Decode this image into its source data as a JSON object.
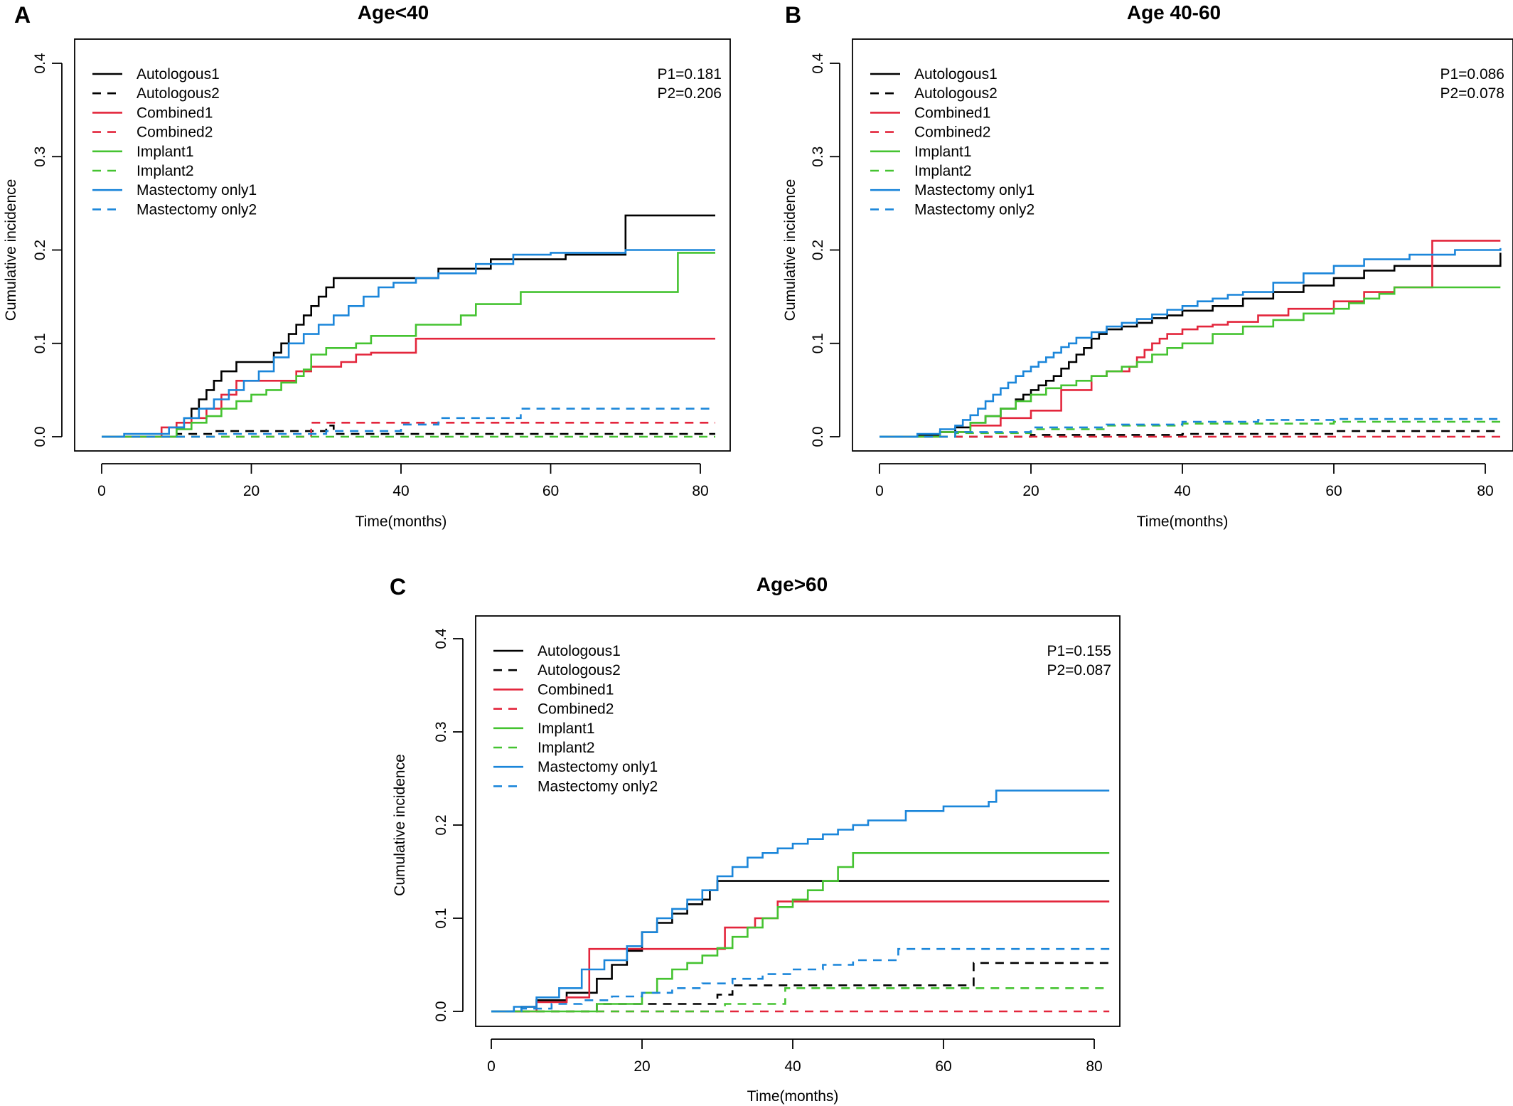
{
  "chart_data": [
    {
      "type": "line",
      "step": true,
      "panel_label": "A",
      "title": "Age<40",
      "xlabel": "Time(months)",
      "ylabel": "Cumulative incidence",
      "xlim": [
        0,
        83
      ],
      "ylim": [
        0,
        0.4
      ],
      "xticks": [
        "0",
        "20",
        "40",
        "60",
        "80"
      ],
      "yticks": [
        "0.0",
        "0.1",
        "0.2",
        "0.3",
        "0.4"
      ],
      "grid": false,
      "legend_position": "top-left",
      "pvalues": [
        "P1=0.181",
        "P2=0.206"
      ],
      "series": [
        {
          "name": "Autologous1",
          "color": "#000000",
          "dash": false,
          "x": [
            0,
            10,
            11,
            12,
            13,
            14,
            15,
            16,
            18,
            20,
            23,
            24,
            25,
            26,
            27,
            28,
            29,
            30,
            31,
            32,
            33,
            34,
            38,
            45,
            52,
            62,
            70,
            82
          ],
          "y": [
            0,
            0.01,
            0.02,
            0.03,
            0.04,
            0.05,
            0.06,
            0.07,
            0.08,
            0.08,
            0.09,
            0.1,
            0.11,
            0.12,
            0.13,
            0.14,
            0.15,
            0.16,
            0.17,
            0.17,
            0.17,
            0.17,
            0.17,
            0.18,
            0.19,
            0.195,
            0.237,
            0.237
          ]
        },
        {
          "name": "Autologous2",
          "color": "#000000",
          "dash": true,
          "x": [
            0,
            10,
            15,
            30,
            31,
            82
          ],
          "y": [
            0,
            0.003,
            0.006,
            0.012,
            0.003,
            0.003
          ]
        },
        {
          "name": "Combined1",
          "color": "#E3263C",
          "dash": false,
          "x": [
            0,
            8,
            10,
            12,
            14,
            16,
            18,
            20,
            22,
            26,
            28,
            32,
            34,
            36,
            42,
            82
          ],
          "y": [
            0,
            0.01,
            0.015,
            0.02,
            0.03,
            0.045,
            0.06,
            0.06,
            0.06,
            0.07,
            0.075,
            0.08,
            0.088,
            0.09,
            0.105,
            0.105
          ]
        },
        {
          "name": "Combined2",
          "color": "#E3263C",
          "dash": true,
          "x": [
            0,
            28,
            82
          ],
          "y": [
            0,
            0.015,
            0.015
          ]
        },
        {
          "name": "Implant1",
          "color": "#45C331",
          "dash": false,
          "x": [
            0,
            10,
            12,
            14,
            16,
            18,
            20,
            22,
            24,
            26,
            27,
            28,
            30,
            34,
            36,
            42,
            48,
            50,
            56,
            64,
            70,
            77,
            82
          ],
          "y": [
            0,
            0.008,
            0.015,
            0.022,
            0.03,
            0.038,
            0.045,
            0.05,
            0.058,
            0.065,
            0.072,
            0.088,
            0.095,
            0.1,
            0.108,
            0.12,
            0.13,
            0.142,
            0.155,
            0.155,
            0.155,
            0.197,
            0.197
          ]
        },
        {
          "name": "Implant2",
          "color": "#45C331",
          "dash": true,
          "x": [
            0,
            82
          ],
          "y": [
            0,
            0
          ]
        },
        {
          "name": "Mastectomy only1",
          "color": "#1B86DA",
          "dash": false,
          "x": [
            0,
            3,
            9,
            11,
            13,
            15,
            17,
            19,
            21,
            23,
            25,
            27,
            29,
            31,
            33,
            35,
            37,
            39,
            42,
            45,
            50,
            55,
            60,
            70,
            82
          ],
          "y": [
            0,
            0.003,
            0.01,
            0.02,
            0.03,
            0.04,
            0.05,
            0.06,
            0.07,
            0.085,
            0.1,
            0.11,
            0.12,
            0.13,
            0.14,
            0.15,
            0.16,
            0.165,
            0.17,
            0.175,
            0.185,
            0.195,
            0.197,
            0.2,
            0.2
          ]
        },
        {
          "name": "Mastectomy only2",
          "color": "#1B86DA",
          "dash": true,
          "x": [
            0,
            15,
            30,
            40,
            45,
            56,
            82
          ],
          "y": [
            0,
            0.003,
            0.006,
            0.013,
            0.02,
            0.03,
            0.03
          ]
        }
      ]
    },
    {
      "type": "line",
      "step": true,
      "panel_label": "B",
      "title": "Age 40-60",
      "xlabel": "Time(months)",
      "ylabel": "Cumulative incidence",
      "xlim": [
        0,
        83
      ],
      "ylim": [
        0,
        0.4
      ],
      "xticks": [
        "0",
        "20",
        "40",
        "60",
        "80"
      ],
      "yticks": [
        "0.0",
        "0.1",
        "0.2",
        "0.3",
        "0.4"
      ],
      "grid": false,
      "legend_position": "top-left",
      "pvalues": [
        "P1=0.086",
        "P2=0.078"
      ],
      "series": [
        {
          "name": "Autologous1",
          "color": "#000000",
          "dash": false,
          "x": [
            0,
            5,
            8,
            10,
            12,
            14,
            16,
            18,
            19,
            20,
            21,
            22,
            23,
            24,
            25,
            26,
            27,
            28,
            29,
            30,
            32,
            34,
            36,
            38,
            40,
            44,
            48,
            52,
            56,
            60,
            64,
            68,
            82
          ],
          "y": [
            0,
            0.002,
            0.005,
            0.01,
            0.015,
            0.022,
            0.03,
            0.04,
            0.045,
            0.05,
            0.055,
            0.06,
            0.065,
            0.073,
            0.08,
            0.088,
            0.095,
            0.105,
            0.11,
            0.115,
            0.118,
            0.122,
            0.127,
            0.13,
            0.135,
            0.14,
            0.148,
            0.155,
            0.162,
            0.17,
            0.178,
            0.183,
            0.197
          ]
        },
        {
          "name": "Autologous2",
          "color": "#000000",
          "dash": true,
          "x": [
            0,
            20,
            40,
            60,
            82
          ],
          "y": [
            0,
            0.002,
            0.003,
            0.006,
            0.006
          ]
        },
        {
          "name": "Combined1",
          "color": "#E3263C",
          "dash": false,
          "x": [
            0,
            8,
            12,
            16,
            20,
            24,
            28,
            30,
            33,
            34,
            35,
            36,
            37,
            38,
            40,
            42,
            44,
            46,
            50,
            54,
            60,
            64,
            68,
            73,
            82
          ],
          "y": [
            0,
            0.005,
            0.012,
            0.02,
            0.028,
            0.05,
            0.065,
            0.07,
            0.075,
            0.085,
            0.093,
            0.1,
            0.105,
            0.11,
            0.115,
            0.118,
            0.12,
            0.123,
            0.13,
            0.137,
            0.145,
            0.155,
            0.16,
            0.21,
            0.21
          ]
        },
        {
          "name": "Combined2",
          "color": "#E3263C",
          "dash": true,
          "x": [
            0,
            82
          ],
          "y": [
            0,
            0
          ]
        },
        {
          "name": "Implant1",
          "color": "#45C331",
          "dash": false,
          "x": [
            0,
            8,
            12,
            14,
            16,
            18,
            20,
            22,
            24,
            26,
            28,
            30,
            32,
            34,
            36,
            38,
            40,
            44,
            48,
            52,
            56,
            60,
            62,
            64,
            66,
            68,
            82
          ],
          "y": [
            0,
            0.005,
            0.015,
            0.022,
            0.03,
            0.038,
            0.045,
            0.052,
            0.055,
            0.06,
            0.065,
            0.07,
            0.075,
            0.08,
            0.088,
            0.095,
            0.1,
            0.11,
            0.118,
            0.125,
            0.132,
            0.137,
            0.143,
            0.148,
            0.153,
            0.16,
            0.16
          ]
        },
        {
          "name": "Implant2",
          "color": "#45C331",
          "dash": true,
          "x": [
            0,
            10,
            20,
            30,
            40,
            60,
            82
          ],
          "y": [
            0,
            0.004,
            0.008,
            0.012,
            0.014,
            0.016,
            0.016
          ]
        },
        {
          "name": "Mastectomy only1",
          "color": "#1B86DA",
          "dash": false,
          "x": [
            0,
            5,
            8,
            10,
            11,
            12,
            13,
            14,
            15,
            16,
            17,
            18,
            19,
            20,
            21,
            22,
            23,
            24,
            25,
            26,
            28,
            30,
            32,
            34,
            36,
            38,
            40,
            42,
            44,
            46,
            48,
            52,
            56,
            60,
            64,
            70,
            76,
            82
          ],
          "y": [
            0,
            0.003,
            0.008,
            0.012,
            0.018,
            0.023,
            0.03,
            0.038,
            0.045,
            0.052,
            0.058,
            0.065,
            0.07,
            0.075,
            0.08,
            0.085,
            0.09,
            0.096,
            0.1,
            0.106,
            0.112,
            0.118,
            0.122,
            0.126,
            0.131,
            0.136,
            0.14,
            0.145,
            0.148,
            0.152,
            0.155,
            0.165,
            0.175,
            0.183,
            0.19,
            0.195,
            0.2,
            0.202
          ]
        },
        {
          "name": "Mastectomy only2",
          "color": "#1B86DA",
          "dash": true,
          "x": [
            0,
            10,
            20,
            30,
            40,
            50,
            60,
            82
          ],
          "y": [
            0,
            0.005,
            0.01,
            0.013,
            0.016,
            0.018,
            0.019,
            0.02
          ]
        }
      ]
    },
    {
      "type": "line",
      "step": true,
      "panel_label": "C",
      "title": "Age>60",
      "xlabel": "Time(months)",
      "ylabel": "Cumulative incidence",
      "xlim": [
        0,
        83
      ],
      "ylim": [
        0,
        0.4
      ],
      "xticks": [
        "0",
        "20",
        "40",
        "60",
        "80"
      ],
      "yticks": [
        "0.0",
        "0.1",
        "0.2",
        "0.3",
        "0.4"
      ],
      "grid": false,
      "legend_position": "top-left",
      "pvalues": [
        "P1=0.155",
        "P2=0.087"
      ],
      "series": [
        {
          "name": "Autologous1",
          "color": "#000000",
          "dash": false,
          "x": [
            0,
            4,
            6,
            10,
            14,
            16,
            18,
            20,
            22,
            24,
            26,
            28,
            29,
            30,
            40,
            82
          ],
          "y": [
            0,
            0.005,
            0.012,
            0.02,
            0.035,
            0.05,
            0.065,
            0.085,
            0.095,
            0.105,
            0.115,
            0.12,
            0.13,
            0.14,
            0.14,
            0.14
          ]
        },
        {
          "name": "Autologous2",
          "color": "#000000",
          "dash": true,
          "x": [
            0,
            14,
            30,
            32,
            40,
            64,
            82
          ],
          "y": [
            0,
            0.008,
            0.018,
            0.028,
            0.028,
            0.052,
            0.052
          ]
        },
        {
          "name": "Combined1",
          "color": "#E3263C",
          "dash": false,
          "x": [
            0,
            6,
            10,
            13,
            18,
            24,
            31,
            35,
            38,
            40,
            82
          ],
          "y": [
            0,
            0.01,
            0.015,
            0.067,
            0.067,
            0.067,
            0.09,
            0.1,
            0.118,
            0.118,
            0.118
          ]
        },
        {
          "name": "Combined2",
          "color": "#E3263C",
          "dash": true,
          "x": [
            0,
            82
          ],
          "y": [
            0,
            0
          ]
        },
        {
          "name": "Implant1",
          "color": "#45C331",
          "dash": false,
          "x": [
            0,
            14,
            20,
            22,
            24,
            26,
            28,
            30,
            32,
            34,
            36,
            38,
            40,
            42,
            44,
            46,
            48,
            82
          ],
          "y": [
            0,
            0.008,
            0.02,
            0.035,
            0.045,
            0.052,
            0.06,
            0.068,
            0.08,
            0.09,
            0.1,
            0.112,
            0.12,
            0.13,
            0.14,
            0.155,
            0.17,
            0.17
          ]
        },
        {
          "name": "Implant2",
          "color": "#45C331",
          "dash": true,
          "x": [
            0,
            31,
            39,
            82
          ],
          "y": [
            0,
            0.008,
            0.025,
            0.025
          ]
        },
        {
          "name": "Mastectomy only1",
          "color": "#1B86DA",
          "dash": false,
          "x": [
            0,
            3,
            6,
            9,
            12,
            15,
            18,
            20,
            22,
            24,
            26,
            28,
            30,
            32,
            34,
            36,
            38,
            40,
            42,
            44,
            46,
            48,
            50,
            55,
            60,
            66,
            67,
            82
          ],
          "y": [
            0,
            0.005,
            0.015,
            0.025,
            0.045,
            0.055,
            0.07,
            0.085,
            0.1,
            0.11,
            0.12,
            0.13,
            0.145,
            0.155,
            0.165,
            0.17,
            0.175,
            0.18,
            0.185,
            0.19,
            0.195,
            0.2,
            0.205,
            0.215,
            0.22,
            0.225,
            0.237,
            0.237
          ]
        },
        {
          "name": "Mastectomy only2",
          "color": "#1B86DA",
          "dash": true,
          "x": [
            0,
            4,
            8,
            12,
            16,
            20,
            24,
            28,
            32,
            36,
            40,
            44,
            48,
            54,
            60,
            82
          ],
          "y": [
            0,
            0.003,
            0.008,
            0.012,
            0.016,
            0.02,
            0.025,
            0.03,
            0.035,
            0.04,
            0.045,
            0.05,
            0.055,
            0.067,
            0.067,
            0.067
          ]
        }
      ]
    }
  ]
}
